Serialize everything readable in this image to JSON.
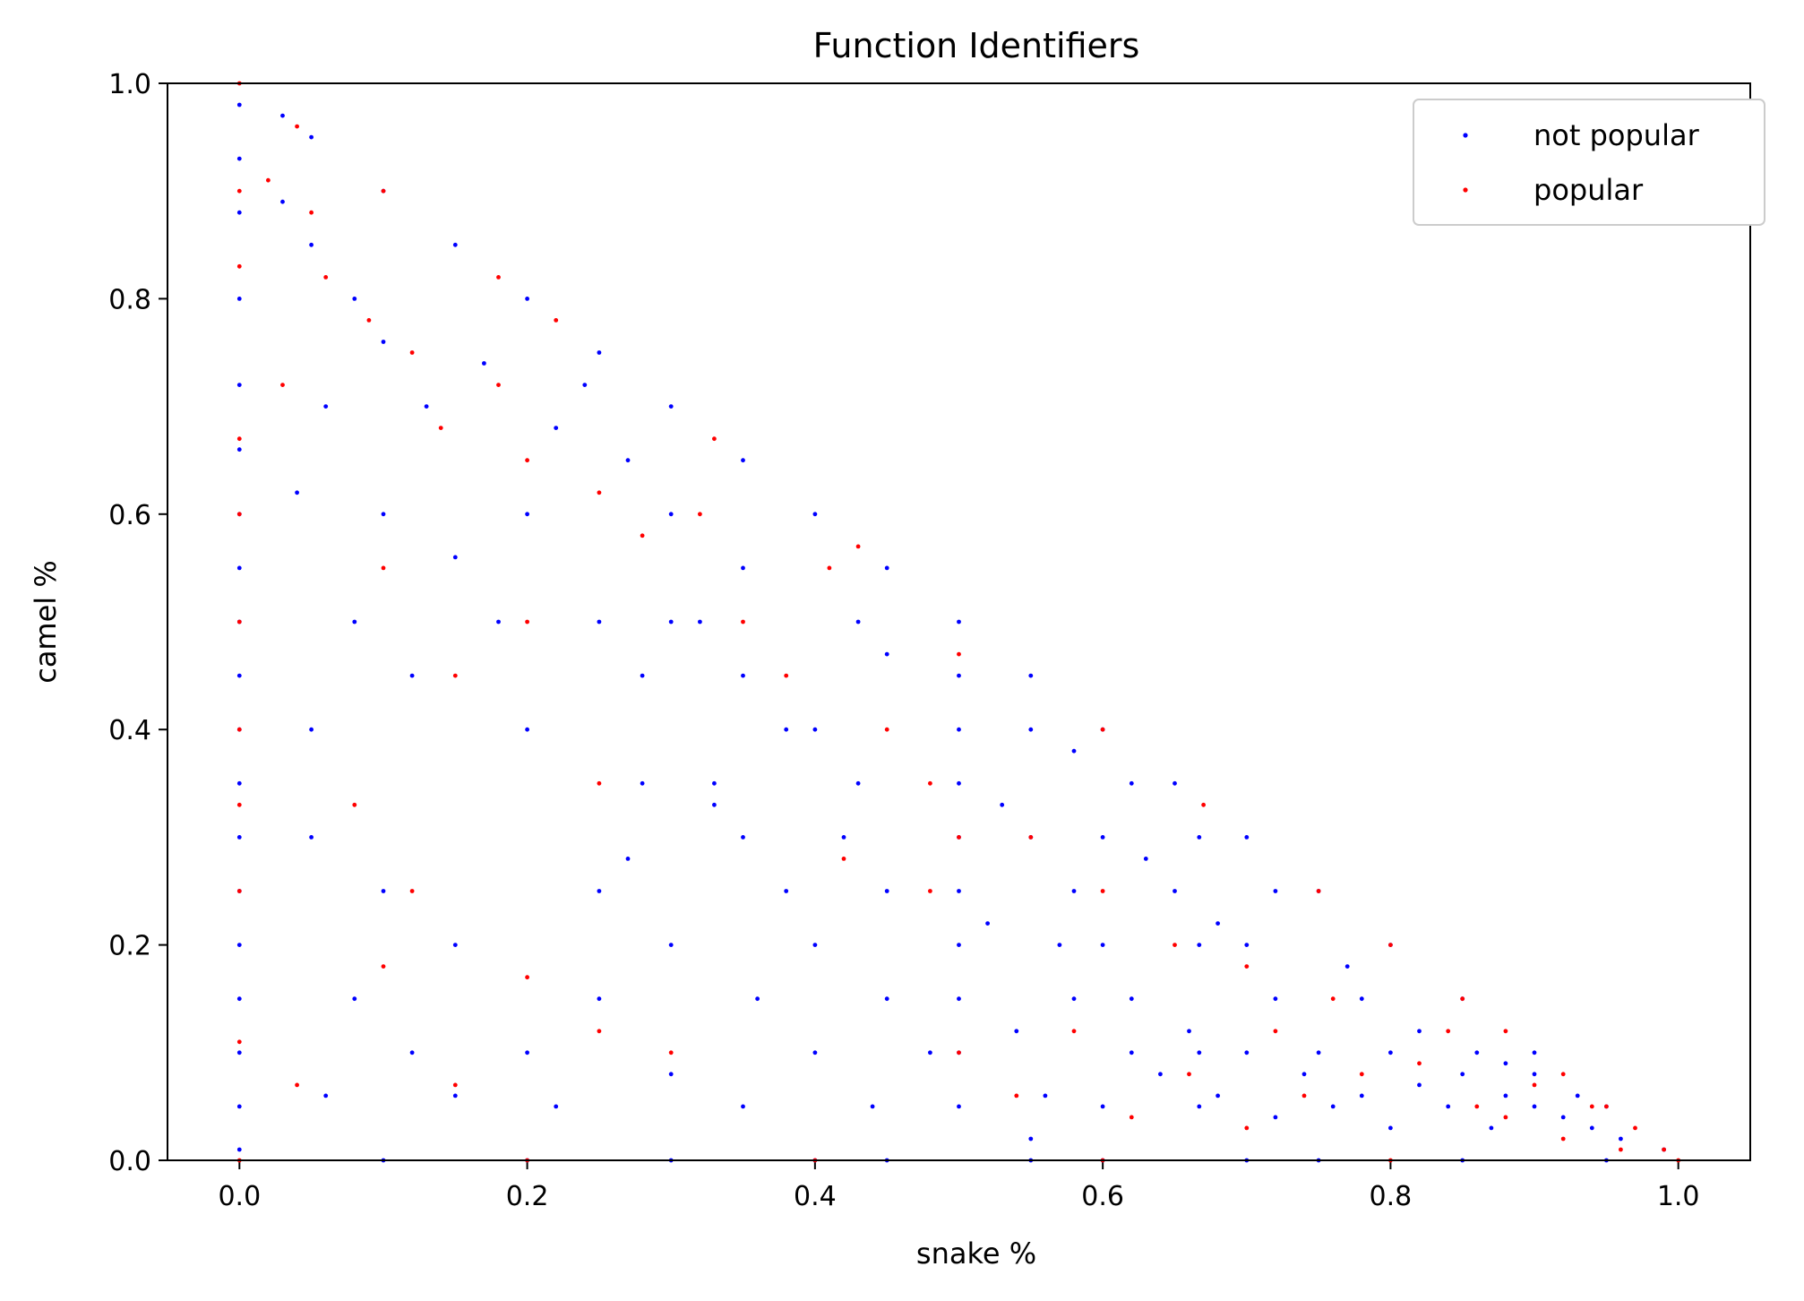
{
  "chart_data": {
    "type": "scatter",
    "title": "Function Identifiers",
    "xlabel": "snake %",
    "ylabel": "camel %",
    "xlim": [
      -0.05,
      1.05
    ],
    "ylim": [
      0.0,
      1.0
    ],
    "xticks": [
      "0.0",
      "0.2",
      "0.4",
      "0.6",
      "0.8",
      "1.0"
    ],
    "yticks": [
      "0.0",
      "0.2",
      "0.4",
      "0.6",
      "0.8",
      "1.0"
    ],
    "grid": false,
    "legend_position": "top-right",
    "series": [
      {
        "name": "not popular",
        "color": "#0000ff",
        "points": [
          [
            0.0,
            0.98
          ],
          [
            0.0,
            0.93
          ],
          [
            0.0,
            0.88
          ],
          [
            0.0,
            0.8
          ],
          [
            0.0,
            0.72
          ],
          [
            0.0,
            0.66
          ],
          [
            0.0,
            0.6
          ],
          [
            0.0,
            0.55
          ],
          [
            0.0,
            0.5
          ],
          [
            0.0,
            0.45
          ],
          [
            0.0,
            0.4
          ],
          [
            0.0,
            0.35
          ],
          [
            0.0,
            0.3
          ],
          [
            0.0,
            0.25
          ],
          [
            0.0,
            0.2
          ],
          [
            0.0,
            0.15
          ],
          [
            0.0,
            0.1
          ],
          [
            0.0,
            0.05
          ],
          [
            0.0,
            0.01
          ],
          [
            0.03,
            0.97
          ],
          [
            0.05,
            0.95
          ],
          [
            0.1,
            0.9
          ],
          [
            0.15,
            0.85
          ],
          [
            0.2,
            0.8
          ],
          [
            0.25,
            0.75
          ],
          [
            0.3,
            0.7
          ],
          [
            0.35,
            0.65
          ],
          [
            0.4,
            0.6
          ],
          [
            0.45,
            0.55
          ],
          [
            0.5,
            0.5
          ],
          [
            0.55,
            0.45
          ],
          [
            0.6,
            0.4
          ],
          [
            0.65,
            0.35
          ],
          [
            0.7,
            0.3
          ],
          [
            0.75,
            0.25
          ],
          [
            0.8,
            0.2
          ],
          [
            0.85,
            0.15
          ],
          [
            0.9,
            0.1
          ],
          [
            0.95,
            0.05
          ],
          [
            0.99,
            0.01
          ],
          [
            0.5,
            0.45
          ],
          [
            0.5,
            0.4
          ],
          [
            0.5,
            0.35
          ],
          [
            0.5,
            0.3
          ],
          [
            0.5,
            0.25
          ],
          [
            0.5,
            0.2
          ],
          [
            0.5,
            0.15
          ],
          [
            0.5,
            0.1
          ],
          [
            0.5,
            0.05
          ],
          [
            0.667,
            0.3
          ],
          [
            0.667,
            0.2
          ],
          [
            0.667,
            0.1
          ],
          [
            0.667,
            0.05
          ],
          [
            0.45,
            0.47
          ],
          [
            0.43,
            0.5
          ],
          [
            0.6,
            0.3
          ],
          [
            0.3,
            0.5
          ],
          [
            0.25,
            0.25
          ],
          [
            0.33,
            0.33
          ],
          [
            0.4,
            0.4
          ],
          [
            0.03,
            0.89
          ],
          [
            0.05,
            0.85
          ],
          [
            0.08,
            0.8
          ],
          [
            0.1,
            0.76
          ],
          [
            0.13,
            0.7
          ],
          [
            0.06,
            0.7
          ],
          [
            0.04,
            0.62
          ],
          [
            0.1,
            0.6
          ],
          [
            0.15,
            0.56
          ],
          [
            0.2,
            0.6
          ],
          [
            0.18,
            0.5
          ],
          [
            0.08,
            0.5
          ],
          [
            0.05,
            0.4
          ],
          [
            0.12,
            0.45
          ],
          [
            0.2,
            0.4
          ],
          [
            0.25,
            0.5
          ],
          [
            0.28,
            0.45
          ],
          [
            0.3,
            0.6
          ],
          [
            0.35,
            0.55
          ],
          [
            0.22,
            0.68
          ],
          [
            0.27,
            0.65
          ],
          [
            0.17,
            0.74
          ],
          [
            0.24,
            0.72
          ],
          [
            0.32,
            0.5
          ],
          [
            0.05,
            0.3
          ],
          [
            0.1,
            0.25
          ],
          [
            0.15,
            0.2
          ],
          [
            0.08,
            0.15
          ],
          [
            0.12,
            0.1
          ],
          [
            0.2,
            0.1
          ],
          [
            0.25,
            0.15
          ],
          [
            0.3,
            0.2
          ],
          [
            0.35,
            0.3
          ],
          [
            0.38,
            0.25
          ],
          [
            0.4,
            0.2
          ],
          [
            0.42,
            0.3
          ],
          [
            0.45,
            0.15
          ],
          [
            0.48,
            0.1
          ],
          [
            0.4,
            0.1
          ],
          [
            0.35,
            0.05
          ],
          [
            0.3,
            0.08
          ],
          [
            0.22,
            0.05
          ],
          [
            0.15,
            0.06
          ],
          [
            0.06,
            0.06
          ],
          [
            0.55,
            0.3
          ],
          [
            0.58,
            0.25
          ],
          [
            0.6,
            0.2
          ],
          [
            0.62,
            0.15
          ],
          [
            0.65,
            0.25
          ],
          [
            0.7,
            0.2
          ],
          [
            0.72,
            0.15
          ],
          [
            0.75,
            0.1
          ],
          [
            0.78,
            0.15
          ],
          [
            0.8,
            0.1
          ],
          [
            0.82,
            0.12
          ],
          [
            0.85,
            0.08
          ],
          [
            0.88,
            0.06
          ],
          [
            0.9,
            0.05
          ],
          [
            0.92,
            0.04
          ],
          [
            0.94,
            0.03
          ],
          [
            0.96,
            0.02
          ],
          [
            0.86,
            0.1
          ],
          [
            0.84,
            0.05
          ],
          [
            0.8,
            0.03
          ],
          [
            0.76,
            0.05
          ],
          [
            0.72,
            0.04
          ],
          [
            0.68,
            0.06
          ],
          [
            0.64,
            0.08
          ],
          [
            0.6,
            0.05
          ],
          [
            0.56,
            0.06
          ],
          [
            0.54,
            0.12
          ],
          [
            0.58,
            0.15
          ],
          [
            0.62,
            0.1
          ],
          [
            0.66,
            0.12
          ],
          [
            0.7,
            0.1
          ],
          [
            0.74,
            0.08
          ],
          [
            0.78,
            0.06
          ],
          [
            0.82,
            0.07
          ],
          [
            0.88,
            0.09
          ],
          [
            0.9,
            0.08
          ],
          [
            0.93,
            0.06
          ],
          [
            0.87,
            0.03
          ],
          [
            0.55,
            0.4
          ],
          [
            0.58,
            0.38
          ],
          [
            0.62,
            0.35
          ],
          [
            0.53,
            0.33
          ],
          [
            0.57,
            0.2
          ],
          [
            0.63,
            0.28
          ],
          [
            0.68,
            0.22
          ],
          [
            0.72,
            0.25
          ],
          [
            0.77,
            0.18
          ],
          [
            0.52,
            0.22
          ],
          [
            0.45,
            0.25
          ],
          [
            0.43,
            0.35
          ],
          [
            0.38,
            0.4
          ],
          [
            0.35,
            0.45
          ],
          [
            0.33,
            0.35
          ],
          [
            0.28,
            0.35
          ],
          [
            0.27,
            0.28
          ],
          [
            0.36,
            0.15
          ],
          [
            0.44,
            0.05
          ],
          [
            0.55,
            0.02
          ],
          [
            0.1,
            0.0
          ],
          [
            0.2,
            0.0
          ],
          [
            0.3,
            0.0
          ],
          [
            0.4,
            0.0
          ],
          [
            0.45,
            0.0
          ],
          [
            0.55,
            0.0
          ],
          [
            0.6,
            0.0
          ],
          [
            0.7,
            0.0
          ],
          [
            0.75,
            0.0
          ],
          [
            0.85,
            0.0
          ],
          [
            0.95,
            0.0
          ]
        ]
      },
      {
        "name": "popular",
        "color": "#ff0000",
        "points": [
          [
            0.0,
            1.0
          ],
          [
            0.0,
            0.9
          ],
          [
            0.0,
            0.83
          ],
          [
            0.0,
            0.67
          ],
          [
            0.0,
            0.6
          ],
          [
            0.0,
            0.5
          ],
          [
            0.0,
            0.4
          ],
          [
            0.0,
            0.33
          ],
          [
            0.0,
            0.25
          ],
          [
            0.0,
            0.11
          ],
          [
            0.0,
            0.0
          ],
          [
            0.04,
            0.96
          ],
          [
            0.1,
            0.9
          ],
          [
            0.18,
            0.82
          ],
          [
            0.22,
            0.78
          ],
          [
            0.33,
            0.67
          ],
          [
            0.43,
            0.57
          ],
          [
            0.6,
            0.4
          ],
          [
            0.67,
            0.33
          ],
          [
            0.75,
            0.25
          ],
          [
            0.8,
            0.2
          ],
          [
            0.85,
            0.15
          ],
          [
            0.88,
            0.12
          ],
          [
            0.92,
            0.08
          ],
          [
            0.95,
            0.05
          ],
          [
            0.97,
            0.03
          ],
          [
            0.99,
            0.01
          ],
          [
            0.02,
            0.91
          ],
          [
            0.05,
            0.88
          ],
          [
            0.06,
            0.82
          ],
          [
            0.03,
            0.72
          ],
          [
            0.09,
            0.78
          ],
          [
            0.12,
            0.75
          ],
          [
            0.14,
            0.68
          ],
          [
            0.18,
            0.72
          ],
          [
            0.2,
            0.65
          ],
          [
            0.25,
            0.62
          ],
          [
            0.28,
            0.58
          ],
          [
            0.32,
            0.6
          ],
          [
            0.35,
            0.5
          ],
          [
            0.38,
            0.45
          ],
          [
            0.41,
            0.55
          ],
          [
            0.45,
            0.4
          ],
          [
            0.48,
            0.35
          ],
          [
            0.5,
            0.47
          ],
          [
            0.5,
            0.3
          ],
          [
            0.5,
            0.1
          ],
          [
            0.1,
            0.55
          ],
          [
            0.15,
            0.45
          ],
          [
            0.2,
            0.5
          ],
          [
            0.25,
            0.35
          ],
          [
            0.08,
            0.33
          ],
          [
            0.12,
            0.25
          ],
          [
            0.2,
            0.17
          ],
          [
            0.25,
            0.12
          ],
          [
            0.3,
            0.1
          ],
          [
            0.1,
            0.18
          ],
          [
            0.04,
            0.07
          ],
          [
            0.15,
            0.07
          ],
          [
            0.42,
            0.28
          ],
          [
            0.48,
            0.25
          ],
          [
            0.55,
            0.3
          ],
          [
            0.6,
            0.25
          ],
          [
            0.65,
            0.2
          ],
          [
            0.7,
            0.18
          ],
          [
            0.72,
            0.12
          ],
          [
            0.76,
            0.15
          ],
          [
            0.78,
            0.08
          ],
          [
            0.82,
            0.09
          ],
          [
            0.84,
            0.12
          ],
          [
            0.86,
            0.05
          ],
          [
            0.88,
            0.04
          ],
          [
            0.9,
            0.07
          ],
          [
            0.92,
            0.02
          ],
          [
            0.94,
            0.05
          ],
          [
            0.96,
            0.01
          ],
          [
            0.74,
            0.06
          ],
          [
            0.7,
            0.03
          ],
          [
            0.66,
            0.08
          ],
          [
            0.62,
            0.04
          ],
          [
            0.58,
            0.12
          ],
          [
            0.54,
            0.06
          ],
          [
            0.2,
            0.0
          ],
          [
            0.4,
            0.0
          ],
          [
            0.6,
            0.0
          ],
          [
            0.8,
            0.0
          ],
          [
            1.0,
            0.0
          ]
        ]
      }
    ]
  }
}
